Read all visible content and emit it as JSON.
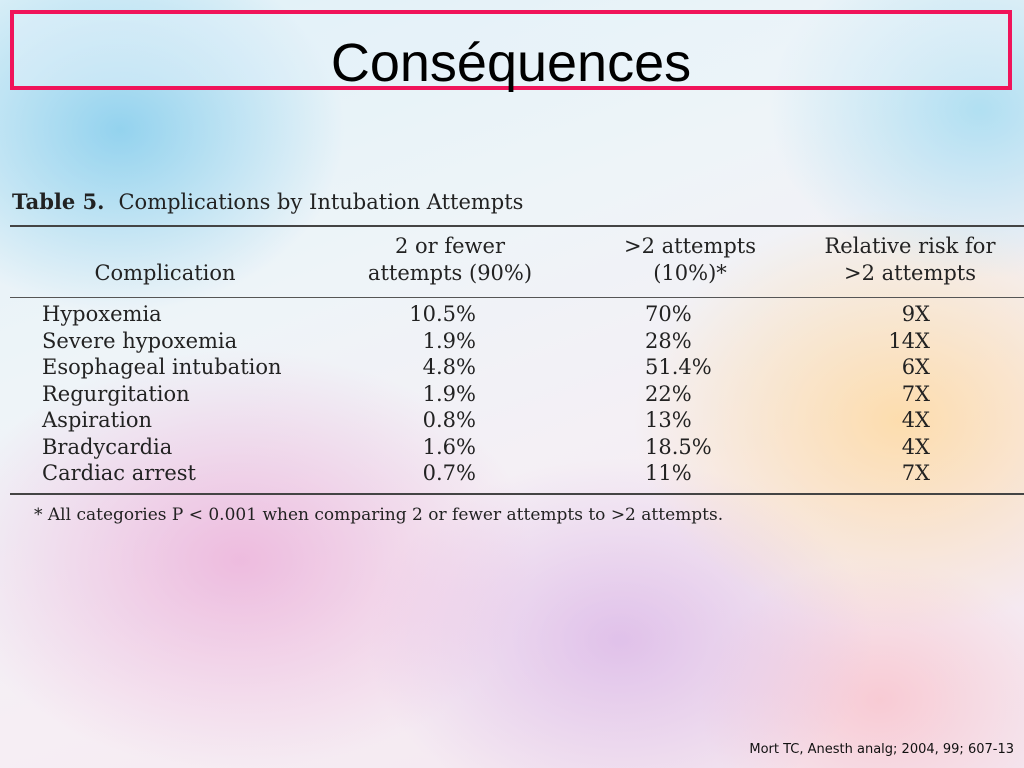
{
  "slide": {
    "title": "Conséquences",
    "citation": "Mort TC, Anesth analg; 2004, 99; 607-13"
  },
  "table": {
    "number": "Table  5.",
    "caption": "Complications by Intubation Attempts",
    "headers": {
      "complication": "Complication",
      "two_or_fewer_line1": "2 or fewer",
      "two_or_fewer_line2": "attempts (90%)",
      "more_than_two_line1": ">2 attempts",
      "more_than_two_line2": "(10%)*",
      "relative_risk_line1": "Relative risk for",
      "relative_risk_line2": ">2 attempts"
    },
    "rows": [
      {
        "complication": "Hypoxemia",
        "two_or_fewer": "10.5%",
        "more_than_two": "70%",
        "relative_risk": "9X"
      },
      {
        "complication": "Severe hypoxemia",
        "two_or_fewer": "1.9%",
        "more_than_two": "28%",
        "relative_risk": "14X"
      },
      {
        "complication": "Esophageal intubation",
        "two_or_fewer": "4.8%",
        "more_than_two": "51.4%",
        "relative_risk": "6X"
      },
      {
        "complication": "Regurgitation",
        "two_or_fewer": "1.9%",
        "more_than_two": "22%",
        "relative_risk": "7X"
      },
      {
        "complication": "Aspiration",
        "two_or_fewer": "0.8%",
        "more_than_two": "13%",
        "relative_risk": "4X"
      },
      {
        "complication": "Bradycardia",
        "two_or_fewer": "1.6%",
        "more_than_two": "18.5%",
        "relative_risk": "4X"
      },
      {
        "complication": "Cardiac arrest",
        "two_or_fewer": "0.7%",
        "more_than_two": "11%",
        "relative_risk": "7X"
      }
    ],
    "footnote": "* All categories P < 0.001 when comparing 2 or fewer attempts to >2 attempts."
  },
  "colors": {
    "title_border": "#f0145a"
  }
}
